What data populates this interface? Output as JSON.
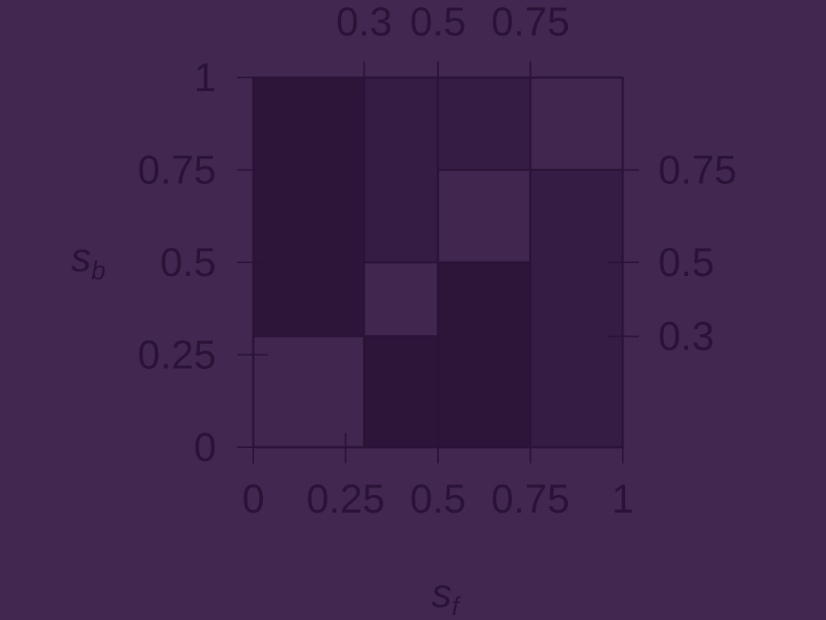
{
  "chart_data": {
    "type": "heatmap",
    "title": "",
    "xlabel": {
      "main": "s",
      "sub": "f"
    },
    "ylabel": {
      "main": "s",
      "sub": "b"
    },
    "xlim": [
      0,
      1
    ],
    "ylim": [
      0,
      1
    ],
    "bottom_ticks": [
      {
        "value": 0,
        "label": "0"
      },
      {
        "value": 0.25,
        "label": "0.25"
      },
      {
        "value": 0.5,
        "label": "0.5"
      },
      {
        "value": 0.75,
        "label": "0.75"
      },
      {
        "value": 1,
        "label": "1"
      }
    ],
    "left_ticks": [
      {
        "value": 0,
        "label": "0"
      },
      {
        "value": 0.25,
        "label": "0.25"
      },
      {
        "value": 0.5,
        "label": "0.5"
      },
      {
        "value": 0.75,
        "label": "0.75"
      },
      {
        "value": 1,
        "label": "1"
      }
    ],
    "top_ticks": [
      {
        "value": 0.3,
        "label": "0.3"
      },
      {
        "value": 0.5,
        "label": "0.5"
      },
      {
        "value": 0.75,
        "label": "0.75"
      }
    ],
    "right_ticks": [
      {
        "value": 0.3,
        "label": "0.3"
      },
      {
        "value": 0.5,
        "label": "0.5"
      },
      {
        "value": 0.75,
        "label": "0.75"
      }
    ],
    "colors": {
      "background": "#422850",
      "ink": "#2b1338",
      "level_dark": "#2d1439",
      "level_mid": "#351c44",
      "level_light": "#41274f"
    },
    "regions": [
      {
        "x": [
          0,
          0.3
        ],
        "y": [
          0.3,
          1
        ],
        "level": "dark"
      },
      {
        "x": [
          0,
          0.3
        ],
        "y": [
          0,
          0.3
        ],
        "level": "light"
      },
      {
        "x": [
          0.3,
          0.5
        ],
        "y": [
          0.5,
          1
        ],
        "level": "mid"
      },
      {
        "x": [
          0.3,
          0.5
        ],
        "y": [
          0.3,
          0.5
        ],
        "level": "light"
      },
      {
        "x": [
          0.3,
          0.5
        ],
        "y": [
          0,
          0.3
        ],
        "level": "dark"
      },
      {
        "x": [
          0.5,
          0.75
        ],
        "y": [
          0.75,
          1
        ],
        "level": "mid"
      },
      {
        "x": [
          0.5,
          0.75
        ],
        "y": [
          0.5,
          0.75
        ],
        "level": "light"
      },
      {
        "x": [
          0.5,
          0.75
        ],
        "y": [
          0,
          0.5
        ],
        "level": "dark"
      },
      {
        "x": [
          0.75,
          1
        ],
        "y": [
          0.75,
          1
        ],
        "level": "light"
      },
      {
        "x": [
          0.75,
          1
        ],
        "y": [
          0,
          0.75
        ],
        "level": "mid"
      }
    ]
  }
}
